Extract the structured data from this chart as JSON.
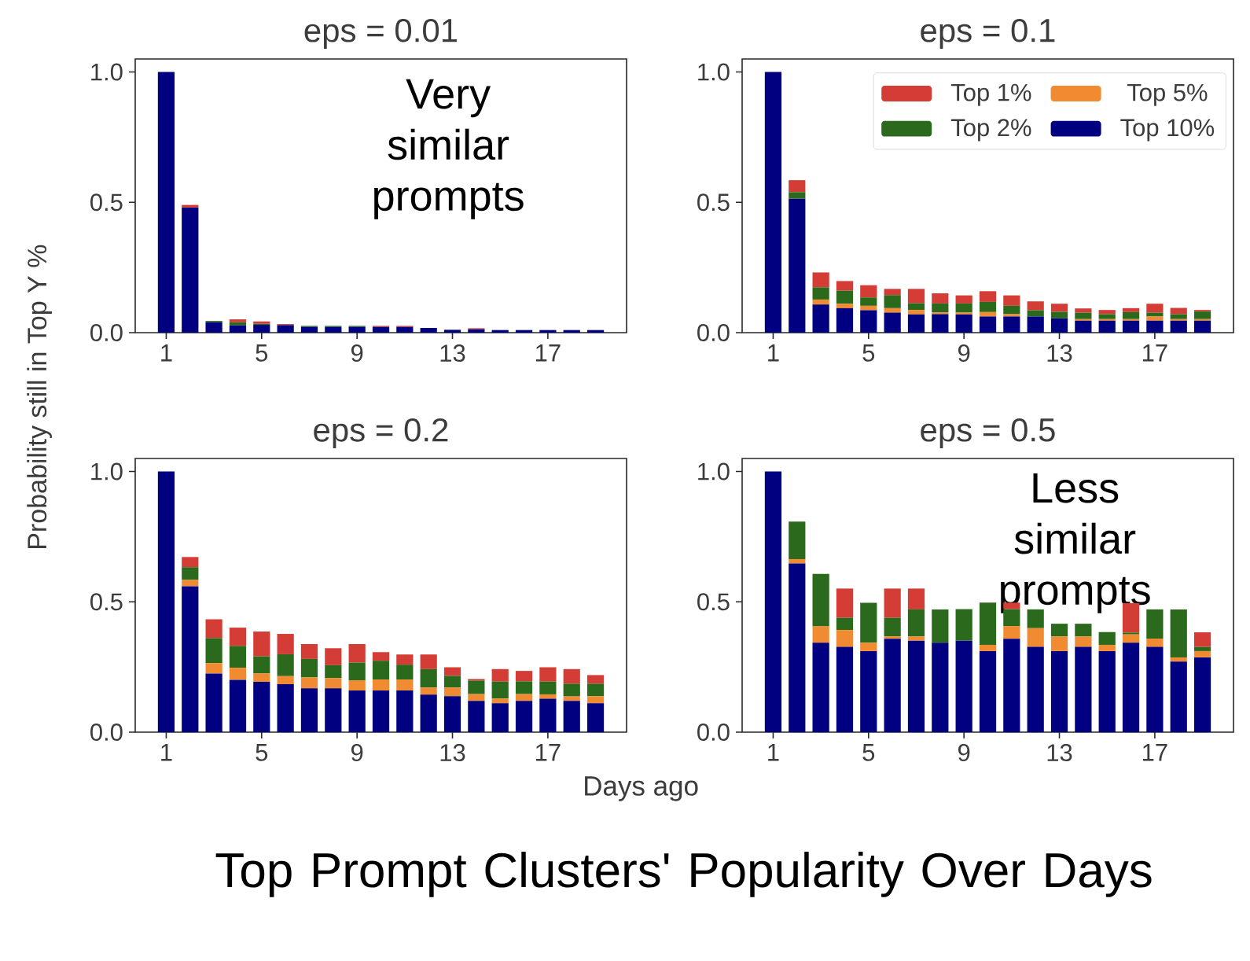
{
  "chart_data": [
    {
      "type": "bar",
      "title": "eps = 0.01",
      "ylabel": "Probability still in Top Y %",
      "annotations": [
        "Very similar prompts"
      ],
      "stacked": true,
      "x": [
        1,
        2,
        3,
        4,
        5,
        6,
        7,
        8,
        9,
        10,
        11,
        12,
        13,
        14,
        15,
        16,
        17,
        18,
        19
      ],
      "xlim": [
        -0.3,
        20.3
      ],
      "xticks": [
        1,
        5,
        9,
        13,
        17
      ],
      "ylim": [
        0,
        1.05
      ],
      "yticks": [
        {
          "value": 0,
          "label": "0.0"
        },
        {
          "value": 0.5,
          "label": "0.5"
        },
        {
          "value": 1,
          "label": "1.0"
        }
      ],
      "series": [
        {
          "color": "#000080",
          "values": [
            1.0,
            0.48,
            0.04,
            0.028,
            0.03,
            0.029,
            0.022,
            0.022,
            0.022,
            0.022,
            0.022,
            0.018,
            0.011,
            0.013,
            0.01,
            0.01,
            0.01,
            0.01,
            0.01
          ]
        },
        {
          "color": "#f18b32",
          "values": [
            0,
            0,
            0,
            0,
            0,
            0,
            0,
            0,
            0,
            0,
            0,
            0,
            0,
            0,
            0,
            0,
            0,
            0,
            0
          ]
        },
        {
          "color": "#2b6a1d",
          "values": [
            0,
            0,
            0.005,
            0.012,
            0.004,
            0,
            0.004,
            0.004,
            0.004,
            0,
            0,
            0,
            0,
            0,
            0,
            0,
            0,
            0,
            0
          ]
        },
        {
          "color": "#d43d35",
          "values": [
            0,
            0.01,
            0,
            0.011,
            0.009,
            0.004,
            0,
            0,
            0,
            0.004,
            0.004,
            0,
            0,
            0.004,
            0,
            0,
            0,
            0,
            0
          ]
        }
      ]
    },
    {
      "type": "bar",
      "title": "eps = 0.1",
      "legend": "top right",
      "stacked": true,
      "x": [
        1,
        2,
        3,
        4,
        5,
        6,
        7,
        8,
        9,
        10,
        11,
        12,
        13,
        14,
        15,
        16,
        17,
        18,
        19
      ],
      "xlim": [
        -0.3,
        20.3
      ],
      "xticks": [
        1,
        5,
        9,
        13,
        17
      ],
      "ylim": [
        0,
        1.05
      ],
      "yticks": [
        {
          "value": 0,
          "label": "0.0"
        },
        {
          "value": 0.5,
          "label": "0.5"
        },
        {
          "value": 1,
          "label": "1.0"
        }
      ],
      "series": [
        {
          "name": "Top 10%",
          "color": "#000080",
          "values": [
            1.0,
            0.514,
            0.108,
            0.094,
            0.086,
            0.077,
            0.07,
            0.071,
            0.07,
            0.062,
            0.062,
            0.062,
            0.055,
            0.046,
            0.046,
            0.046,
            0.046,
            0.046,
            0.046
          ]
        },
        {
          "name": "Top 5%",
          "color": "#f18b32",
          "values": [
            0,
            0,
            0.019,
            0.017,
            0.017,
            0.017,
            0.017,
            0.007,
            0.007,
            0.017,
            0.009,
            0,
            0,
            0.006,
            0.006,
            0.006,
            0.016,
            0.006,
            0.006
          ]
        },
        {
          "name": "Top 2%",
          "color": "#2b6a1d",
          "values": [
            0,
            0.025,
            0.047,
            0.05,
            0.032,
            0.05,
            0.026,
            0.034,
            0.035,
            0.039,
            0.032,
            0.024,
            0.025,
            0.025,
            0.019,
            0.027,
            0.015,
            0.019,
            0.029
          ]
        },
        {
          "name": "Top 1%",
          "color": "#d43d35",
          "values": [
            0,
            0.046,
            0.057,
            0.037,
            0.047,
            0.024,
            0.055,
            0.039,
            0.031,
            0.041,
            0.04,
            0.034,
            0.031,
            0.016,
            0.016,
            0.015,
            0.034,
            0.024,
            0.006
          ]
        }
      ]
    },
    {
      "type": "bar",
      "title": "eps = 0.2",
      "xlabel": "Days ago",
      "annotations": [
        "Top Prompt Clusters' Popularity Over Days"
      ],
      "stacked": true,
      "x": [
        1,
        2,
        3,
        4,
        5,
        6,
        7,
        8,
        9,
        10,
        11,
        12,
        13,
        14,
        15,
        16,
        17,
        18,
        19
      ],
      "xlim": [
        -0.3,
        20.3
      ],
      "xticks": [
        1,
        5,
        9,
        13,
        17
      ],
      "ylim": [
        0,
        1.05
      ],
      "yticks": [
        {
          "value": 0,
          "label": "0.0"
        },
        {
          "value": 0.5,
          "label": "0.5"
        },
        {
          "value": 1,
          "label": "1.0"
        }
      ],
      "series": [
        {
          "color": "#000080",
          "values": [
            1.0,
            0.56,
            0.225,
            0.201,
            0.193,
            0.184,
            0.168,
            0.168,
            0.16,
            0.16,
            0.16,
            0.144,
            0.138,
            0.12,
            0.111,
            0.12,
            0.128,
            0.12,
            0.111
          ]
        },
        {
          "color": "#f18b32",
          "values": [
            0,
            0.024,
            0.04,
            0.046,
            0.032,
            0.031,
            0.042,
            0.039,
            0.039,
            0.042,
            0.042,
            0.027,
            0.033,
            0.026,
            0.018,
            0.026,
            0.017,
            0.017,
            0.027
          ]
        },
        {
          "color": "#2b6a1d",
          "values": [
            0,
            0.049,
            0.096,
            0.084,
            0.066,
            0.084,
            0.071,
            0.05,
            0.068,
            0.072,
            0.057,
            0.071,
            0.045,
            0.052,
            0.065,
            0.049,
            0.049,
            0.049,
            0.048
          ]
        },
        {
          "color": "#d43d35",
          "values": [
            0,
            0.039,
            0.072,
            0.07,
            0.095,
            0.078,
            0.057,
            0.065,
            0.071,
            0.033,
            0.039,
            0.056,
            0.033,
            0.006,
            0.048,
            0.04,
            0.055,
            0.056,
            0.033
          ]
        }
      ]
    },
    {
      "type": "bar",
      "title": "eps = 0.5",
      "annotations": [
        "Less similar prompts"
      ],
      "stacked": true,
      "x": [
        1,
        2,
        3,
        4,
        5,
        6,
        7,
        8,
        9,
        10,
        11,
        12,
        13,
        14,
        15,
        16,
        17,
        18,
        19
      ],
      "xlim": [
        -0.3,
        20.3
      ],
      "xticks": [
        1,
        5,
        9,
        13,
        17
      ],
      "ylim": [
        0,
        1.05
      ],
      "yticks": [
        {
          "value": 0,
          "label": "0.0"
        },
        {
          "value": 0.5,
          "label": "0.5"
        },
        {
          "value": 1,
          "label": "1.0"
        }
      ],
      "series": [
        {
          "color": "#000080",
          "values": [
            1.0,
            0.647,
            0.343,
            0.327,
            0.311,
            0.358,
            0.351,
            0.343,
            0.351,
            0.311,
            0.358,
            0.327,
            0.311,
            0.327,
            0.311,
            0.343,
            0.327,
            0.271,
            0.287
          ]
        },
        {
          "color": "#f18b32",
          "values": [
            0,
            0.017,
            0.063,
            0.065,
            0.032,
            0.009,
            0.016,
            0,
            0,
            0.024,
            0.049,
            0.072,
            0.056,
            0.04,
            0.024,
            0.032,
            0.032,
            0.016,
            0.024
          ]
        },
        {
          "color": "#2b6a1d",
          "values": [
            0,
            0.144,
            0.201,
            0.047,
            0.153,
            0.072,
            0.104,
            0.128,
            0.121,
            0.162,
            0.065,
            0.072,
            0.049,
            0.049,
            0.049,
            0.007,
            0.112,
            0.184,
            0.016
          ]
        },
        {
          "color": "#d43d35",
          "values": [
            0,
            0,
            0,
            0.112,
            0,
            0.112,
            0.08,
            0,
            0,
            0,
            0.025,
            0,
            0,
            0,
            0,
            0.113,
            0,
            0,
            0.056
          ]
        }
      ]
    }
  ]
}
